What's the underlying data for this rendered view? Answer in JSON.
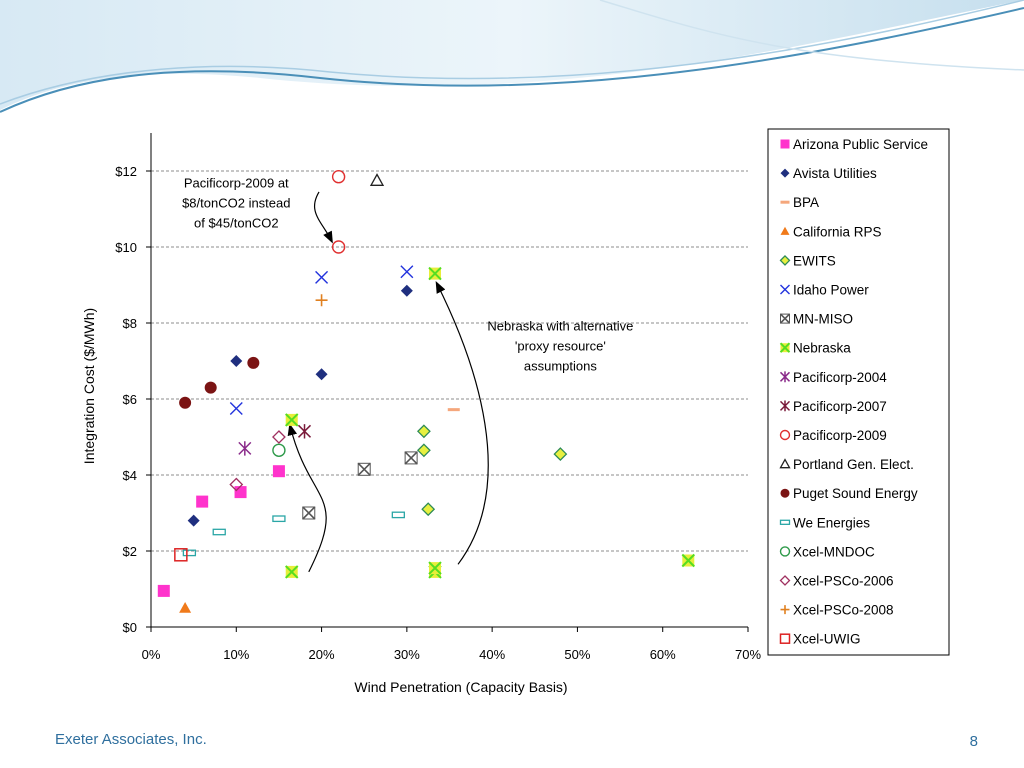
{
  "slide": {
    "footer": "Exeter Associates, Inc.",
    "page_number": "8"
  },
  "colors": {
    "header_wave_dark": "#4a8fb8",
    "header_wave_light": "#a9cde3",
    "footer_text": "#2f6f9e",
    "gridline": "#8c8c8c"
  },
  "chart_data": {
    "type": "scatter",
    "title": "",
    "xlabel": "Wind Penetration (Capacity Basis)",
    "ylabel": "Integration Cost ($/MWh)",
    "xlim": [
      0,
      0.7
    ],
    "ylim": [
      0,
      13
    ],
    "x_ticks": [
      {
        "v": 0.0,
        "label": "0%"
      },
      {
        "v": 0.1,
        "label": "10%"
      },
      {
        "v": 0.2,
        "label": "20%"
      },
      {
        "v": 0.3,
        "label": "30%"
      },
      {
        "v": 0.4,
        "label": "40%"
      },
      {
        "v": 0.5,
        "label": "50%"
      },
      {
        "v": 0.6,
        "label": "60%"
      },
      {
        "v": 0.7,
        "label": "70%"
      }
    ],
    "y_ticks": [
      {
        "v": 0,
        "label": "$0"
      },
      {
        "v": 2,
        "label": "$2"
      },
      {
        "v": 4,
        "label": "$4"
      },
      {
        "v": 6,
        "label": "$6"
      },
      {
        "v": 8,
        "label": "$8"
      },
      {
        "v": 10,
        "label": "$10"
      },
      {
        "v": 12,
        "label": "$12"
      }
    ],
    "horizontal_gridlines": "dashed",
    "legend_position": "right",
    "series": [
      {
        "name": "Arizona Public Service",
        "marker": "square-filled",
        "color": "#ff33cc",
        "points": [
          [
            0.015,
            0.95
          ],
          [
            0.06,
            3.3
          ],
          [
            0.105,
            3.55
          ],
          [
            0.15,
            4.1
          ]
        ]
      },
      {
        "name": "Avista Utilities",
        "marker": "diamond-filled",
        "color": "#1f2f7f",
        "points": [
          [
            0.05,
            2.8
          ],
          [
            0.1,
            7.0
          ],
          [
            0.2,
            6.65
          ],
          [
            0.3,
            8.85
          ]
        ]
      },
      {
        "name": "BPA",
        "marker": "dash",
        "color": "#f5a77c",
        "points": [
          [
            0.355,
            5.72
          ]
        ]
      },
      {
        "name": "California RPS",
        "marker": "triangle-filled",
        "color": "#f07a1a",
        "points": [
          [
            0.04,
            0.5
          ]
        ]
      },
      {
        "name": "EWITS",
        "marker": "diamond-open",
        "color": "#2e8b57",
        "fill": "#e8f040",
        "points": [
          [
            0.32,
            5.15
          ],
          [
            0.32,
            4.65
          ],
          [
            0.325,
            3.1
          ],
          [
            0.48,
            4.55
          ]
        ]
      },
      {
        "name": "Idaho Power",
        "marker": "x",
        "color": "#2233dd",
        "points": [
          [
            0.1,
            5.75
          ],
          [
            0.2,
            9.2
          ],
          [
            0.3,
            9.35
          ]
        ]
      },
      {
        "name": "MN-MISO",
        "marker": "boxed-x",
        "color": "#555555",
        "points": [
          [
            0.185,
            3.0
          ],
          [
            0.25,
            4.15
          ],
          [
            0.305,
            4.45
          ]
        ]
      },
      {
        "name": "Nebraska",
        "marker": "x-filled-box",
        "color": "#55dd22",
        "points": [
          [
            0.165,
            1.45
          ],
          [
            0.165,
            5.45
          ],
          [
            0.333,
            9.3
          ],
          [
            0.333,
            1.45
          ],
          [
            0.333,
            1.55
          ],
          [
            0.63,
            1.75
          ]
        ]
      },
      {
        "name": "Pacificorp-2004",
        "marker": "star",
        "color": "#8a2a8a",
        "points": [
          [
            0.11,
            4.7
          ]
        ]
      },
      {
        "name": "Pacificorp-2007",
        "marker": "star",
        "color": "#7a1a3a",
        "points": [
          [
            0.18,
            5.15
          ]
        ]
      },
      {
        "name": "Pacificorp-2009",
        "marker": "circle-open",
        "color": "#e03030",
        "points": [
          [
            0.22,
            11.85
          ],
          [
            0.22,
            10.0
          ]
        ]
      },
      {
        "name": "Portland Gen. Elect.",
        "marker": "triangle-open",
        "color": "#222222",
        "points": [
          [
            0.265,
            11.75
          ]
        ]
      },
      {
        "name": "Puget Sound Energy",
        "marker": "circle-filled",
        "color": "#7b1414",
        "points": [
          [
            0.04,
            5.9
          ],
          [
            0.07,
            6.3
          ],
          [
            0.12,
            6.95
          ]
        ]
      },
      {
        "name": "We Energies",
        "marker": "rect-open",
        "color": "#2aa6a6",
        "points": [
          [
            0.045,
            1.95
          ],
          [
            0.08,
            2.5
          ],
          [
            0.15,
            2.85
          ],
          [
            0.29,
            2.95
          ]
        ]
      },
      {
        "name": "Xcel-MNDOC",
        "marker": "circle-open",
        "color": "#2e9a4a",
        "points": [
          [
            0.15,
            4.65
          ]
        ]
      },
      {
        "name": "Xcel-PSCo-2006",
        "marker": "diamond-open",
        "color": "#a03060",
        "points": [
          [
            0.1,
            3.75
          ],
          [
            0.15,
            5.0
          ]
        ]
      },
      {
        "name": "Xcel-PSCo-2008",
        "marker": "plus",
        "color": "#e08020",
        "points": [
          [
            0.2,
            8.6
          ]
        ]
      },
      {
        "name": "Xcel-UWIG",
        "marker": "square-open",
        "color": "#dd2222",
        "points": [
          [
            0.035,
            1.9
          ]
        ]
      }
    ],
    "annotations": [
      {
        "text": [
          "Pacificorp-2009 at",
          "$8/tonCO2 instead",
          "of $45/tonCO2"
        ],
        "anchor": [
          0.1,
          11.3
        ],
        "arrow_from": [
          0.197,
          11.45
        ],
        "arrow_to": [
          0.212,
          10.15
        ]
      },
      {
        "text": [
          "Nebraska with alternative",
          "'proxy resource'",
          "assumptions"
        ],
        "anchor": [
          0.48,
          7.8
        ],
        "arrow_pairs": [
          {
            "from": [
              0.36,
              1.65
            ],
            "to": [
              0.335,
              9.05
            ]
          },
          {
            "from": [
              0.185,
              1.45
            ],
            "to": [
              0.163,
              5.3
            ]
          }
        ]
      }
    ]
  }
}
